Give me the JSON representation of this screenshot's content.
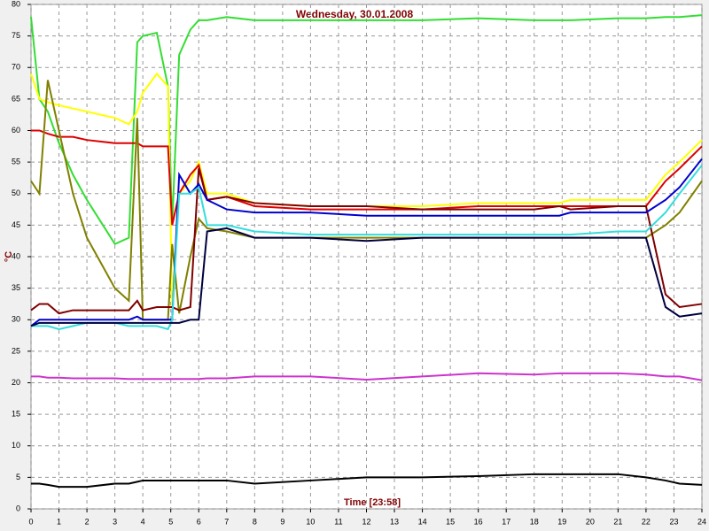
{
  "chart_data": {
    "type": "line",
    "title": "Wednesday, 30.01.2008",
    "y_label": "°C",
    "x_label": "Time [23:58]",
    "x": [
      0,
      0.3,
      0.6,
      1,
      1.5,
      2,
      3,
      3.5,
      3.8,
      4,
      4.5,
      4.9,
      5.05,
      5.3,
      5.7,
      6,
      6.3,
      7,
      8,
      10,
      12,
      14,
      16,
      18,
      18.9,
      19.3,
      21,
      22,
      22.7,
      23.2,
      24
    ],
    "series": [
      {
        "color": "#33dd33",
        "values": [
          78,
          65,
          63,
          58,
          53,
          49,
          42,
          43,
          74,
          75,
          75.5,
          67,
          45,
          72,
          76,
          77.5,
          77.5,
          78,
          77.5,
          77.5,
          77.5,
          77.5,
          77.8,
          77.5,
          77.5,
          77.5,
          77.8,
          77.8,
          78,
          78,
          78.3
        ]
      },
      {
        "color": "#ffff00",
        "values": [
          69,
          65,
          64.5,
          64,
          63.5,
          63,
          62,
          61,
          63,
          66,
          69,
          67,
          32,
          50,
          52,
          55,
          50,
          50,
          48.5,
          48,
          48,
          48,
          48.5,
          48.5,
          48.5,
          49,
          49,
          49,
          53,
          55,
          58.5
        ]
      },
      {
        "color": "#dd0000",
        "values": [
          60,
          60,
          59.5,
          59,
          59,
          58.5,
          58,
          58,
          58,
          57.5,
          57.5,
          57.5,
          45,
          50,
          53,
          54.5,
          49,
          49.5,
          48,
          47.5,
          47.5,
          47.5,
          48,
          48,
          48,
          48,
          48,
          48,
          52,
          54,
          57.5
        ]
      },
      {
        "color": "#808000",
        "values": [
          52,
          50,
          68,
          60,
          50,
          43,
          35,
          33,
          62,
          30,
          30,
          30,
          42,
          31,
          40,
          46,
          44.5,
          44,
          43,
          43,
          43,
          43,
          43,
          43,
          43,
          43,
          43,
          43,
          45,
          47,
          52
        ]
      },
      {
        "color": "#800000",
        "values": [
          31.5,
          32.5,
          32.5,
          31,
          31.5,
          31.5,
          31.5,
          31.5,
          33,
          31.5,
          32,
          32,
          32,
          31.5,
          32,
          54,
          49,
          49.5,
          48.5,
          48,
          48,
          47.5,
          47.5,
          47.5,
          48,
          47.5,
          48,
          48,
          34,
          32,
          32.5
        ]
      },
      {
        "color": "#0000cc",
        "values": [
          29,
          30,
          30,
          30,
          30,
          30,
          30,
          30,
          30.5,
          30,
          30,
          30,
          30,
          53,
          50,
          51.5,
          49,
          47.5,
          47,
          47,
          46.5,
          46.5,
          46.5,
          46.5,
          46.5,
          47,
          47,
          47,
          49,
          51,
          55.5
        ]
      },
      {
        "color": "#33dddd",
        "values": [
          29,
          29,
          29,
          28.5,
          29,
          29.5,
          29.5,
          29,
          29,
          29,
          29,
          28.5,
          30,
          50,
          50,
          51,
          45,
          45,
          44,
          43.5,
          43.5,
          43.5,
          43.5,
          43.5,
          43.5,
          43.5,
          44,
          44,
          47,
          50,
          54.5
        ]
      },
      {
        "color": "#000040",
        "values": [
          29,
          29.5,
          29.5,
          29.5,
          29.5,
          29.5,
          29.5,
          29.5,
          29.5,
          29.5,
          29.5,
          29.5,
          29.5,
          29.5,
          30,
          30,
          44,
          44.5,
          43,
          43,
          42.5,
          43,
          43,
          43,
          43,
          43,
          43,
          43,
          32,
          30.5,
          31
        ]
      },
      {
        "color": "#cc33cc",
        "values": [
          21,
          21,
          20.8,
          20.8,
          20.7,
          20.7,
          20.7,
          20.6,
          20.6,
          20.6,
          20.6,
          20.6,
          20.6,
          20.6,
          20.6,
          20.6,
          20.7,
          20.7,
          21,
          21,
          20.5,
          21,
          21.5,
          21.3,
          21.5,
          21.5,
          21.5,
          21.3,
          21,
          21,
          20.4
        ]
      },
      {
        "color": "#000000",
        "values": [
          4,
          4,
          3.8,
          3.5,
          3.5,
          3.5,
          4,
          4,
          4.3,
          4.5,
          4.5,
          4.5,
          4.5,
          4.5,
          4.5,
          4.5,
          4.5,
          4.5,
          4,
          4.5,
          5,
          5,
          5.2,
          5.5,
          5.5,
          5.5,
          5.5,
          5,
          4.5,
          4,
          3.8
        ]
      }
    ],
    "xlim": [
      0,
      24
    ],
    "xticks": [
      0,
      1,
      2,
      3,
      4,
      5,
      6,
      7,
      8,
      9,
      10,
      11,
      12,
      13,
      14,
      15,
      16,
      17,
      18,
      19,
      20,
      21,
      22,
      23,
      24
    ],
    "ylim": [
      0,
      80
    ],
    "yticks": [
      0,
      5,
      10,
      15,
      20,
      25,
      30,
      35,
      40,
      45,
      50,
      55,
      60,
      65,
      70,
      75,
      80
    ],
    "grid": true
  }
}
